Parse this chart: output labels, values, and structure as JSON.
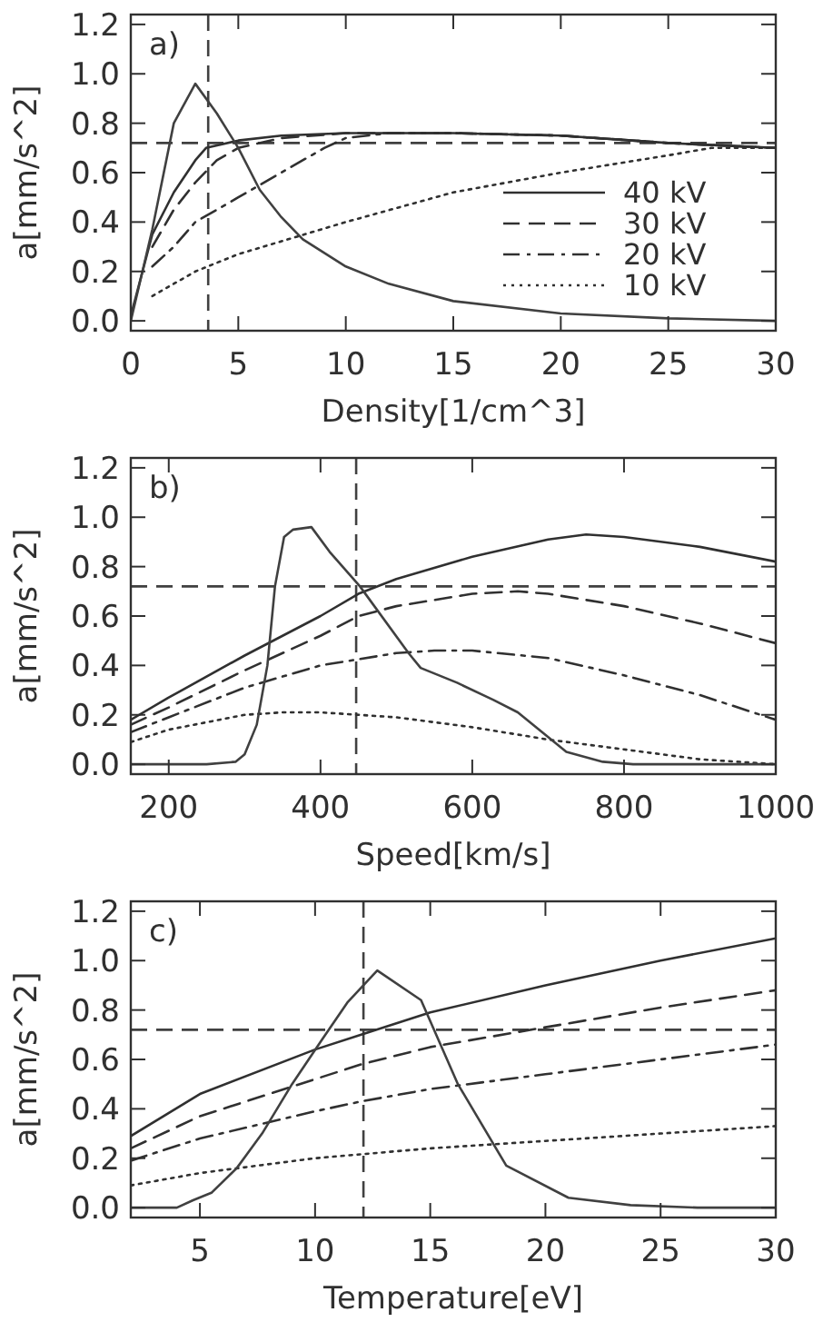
{
  "chart_data": [
    {
      "type": "line",
      "xlabel": "Density[1/cm^3]",
      "ylabel": "a[mm/s^2]",
      "annotations": [
        "a)"
      ],
      "xlim": [
        0,
        30
      ],
      "ylim": [
        -0.04,
        1.24
      ],
      "xticks": [
        0,
        5,
        10,
        15,
        20,
        25,
        30
      ],
      "yticks": [
        {
          "value": 0,
          "label": "0.0"
        },
        {
          "value": 0.2,
          "label": "0.2"
        },
        {
          "value": 0.4,
          "label": "0.4"
        },
        {
          "value": 0.6,
          "label": "0.6"
        },
        {
          "value": 0.8,
          "label": "0.8"
        },
        {
          "value": 1,
          "label": "1.0"
        },
        {
          "value": 1.2,
          "label": "1.2"
        }
      ],
      "legend": "bottom right",
      "grid": false,
      "ref_lines": [
        {
          "axis": "y",
          "value": 0.72,
          "line_style": "dashed",
          "color": "#404040"
        },
        {
          "axis": "x",
          "value": 3.6,
          "line_style": "dashed",
          "color": "#404040"
        }
      ],
      "series": [
        {
          "name": "40 kV",
          "color": "#303030",
          "line_style": "solid",
          "x": [
            0,
            1,
            2,
            3,
            3.5,
            5,
            7,
            10,
            15,
            20,
            25,
            30
          ],
          "values": [
            0.02,
            0.35,
            0.52,
            0.65,
            0.7,
            0.73,
            0.75,
            0.76,
            0.76,
            0.75,
            0.72,
            0.7
          ]
        },
        {
          "name": "30 kV",
          "color": "#303030",
          "line_style": "dashed",
          "x": [
            1,
            2,
            3,
            4,
            5,
            7,
            10,
            15,
            20,
            25,
            30
          ],
          "values": [
            0.3,
            0.45,
            0.56,
            0.65,
            0.7,
            0.74,
            0.76,
            0.76,
            0.75,
            0.72,
            0.7
          ]
        },
        {
          "name": "20 kV",
          "color": "#303030",
          "line_style": "dashdot",
          "x": [
            1,
            2,
            3,
            5,
            7,
            9,
            10,
            12,
            15,
            20,
            25,
            30
          ],
          "values": [
            0.22,
            0.3,
            0.4,
            0.5,
            0.6,
            0.7,
            0.74,
            0.76,
            0.76,
            0.75,
            0.72,
            0.7
          ]
        },
        {
          "name": "10 kV",
          "color": "#303030",
          "line_style": "dotted",
          "x": [
            1,
            3,
            5,
            10,
            15,
            20,
            25,
            27,
            30
          ],
          "values": [
            0.1,
            0.2,
            0.27,
            0.4,
            0.52,
            0.6,
            0.67,
            0.7,
            0.7
          ]
        },
        {
          "color": "#404040",
          "line_style": "solid",
          "x": [
            0,
            1,
            2,
            3,
            4,
            5,
            6,
            7,
            8,
            10,
            12,
            15,
            20,
            25,
            30
          ],
          "values": [
            0,
            0.37,
            0.8,
            0.96,
            0.84,
            0.7,
            0.53,
            0.42,
            0.33,
            0.22,
            0.15,
            0.08,
            0.03,
            0.01,
            0
          ]
        }
      ]
    },
    {
      "type": "line",
      "xlabel": "Speed[km/s]",
      "ylabel": "a[mm/s^2]",
      "annotations": [
        "b)"
      ],
      "xlim": [
        150,
        1000
      ],
      "ylim": [
        -0.04,
        1.24
      ],
      "xticks": [
        200,
        400,
        600,
        800,
        1000
      ],
      "yticks": [
        {
          "value": 0,
          "label": "0.0"
        },
        {
          "value": 0.2,
          "label": "0.2"
        },
        {
          "value": 0.4,
          "label": "0.4"
        },
        {
          "value": 0.6,
          "label": "0.6"
        },
        {
          "value": 0.8,
          "label": "0.8"
        },
        {
          "value": 1,
          "label": "1.0"
        },
        {
          "value": 1.2,
          "label": "1.2"
        }
      ],
      "grid": false,
      "ref_lines": [
        {
          "axis": "y",
          "value": 0.72,
          "line_style": "dashed",
          "color": "#404040"
        },
        {
          "axis": "x",
          "value": 447,
          "line_style": "dashed",
          "color": "#404040"
        }
      ],
      "series": [
        {
          "color": "#303030",
          "line_style": "solid",
          "x": [
            150,
            200,
            300,
            400,
            450,
            500,
            600,
            700,
            750,
            800,
            900,
            1000
          ],
          "values": [
            0.18,
            0.27,
            0.44,
            0.6,
            0.69,
            0.75,
            0.84,
            0.91,
            0.93,
            0.92,
            0.88,
            0.82
          ]
        },
        {
          "color": "#303030",
          "line_style": "dashed",
          "x": [
            150,
            200,
            300,
            400,
            450,
            500,
            600,
            660,
            700,
            800,
            900,
            1000
          ],
          "values": [
            0.16,
            0.23,
            0.38,
            0.52,
            0.6,
            0.64,
            0.69,
            0.7,
            0.69,
            0.64,
            0.57,
            0.49
          ]
        },
        {
          "color": "#303030",
          "line_style": "dashdot",
          "x": [
            150,
            200,
            300,
            400,
            500,
            550,
            600,
            700,
            800,
            900,
            1000
          ],
          "values": [
            0.13,
            0.19,
            0.31,
            0.4,
            0.45,
            0.46,
            0.46,
            0.43,
            0.36,
            0.28,
            0.18
          ]
        },
        {
          "color": "#303030",
          "line_style": "dotted",
          "x": [
            150,
            200,
            300,
            350,
            400,
            500,
            600,
            700,
            800,
            900,
            1000
          ],
          "values": [
            0.09,
            0.14,
            0.2,
            0.21,
            0.21,
            0.19,
            0.15,
            0.1,
            0.06,
            0.02,
            0
          ]
        },
        {
          "color": "#404040",
          "line_style": "solid",
          "x": [
            150,
            250,
            288,
            300,
            316,
            330,
            340,
            352,
            364,
            388,
            412,
            452,
            516,
            532,
            580,
            628,
            660,
            692,
            724,
            772,
            812,
            1000
          ],
          "values": [
            0,
            0,
            0.01,
            0.04,
            0.16,
            0.4,
            0.72,
            0.92,
            0.95,
            0.96,
            0.86,
            0.72,
            0.45,
            0.39,
            0.33,
            0.26,
            0.21,
            0.13,
            0.05,
            0.01,
            0,
            0
          ]
        }
      ]
    },
    {
      "type": "line",
      "xlabel": "Temperature[eV]",
      "ylabel": "a[mm/s^2]",
      "annotations": [
        "c)"
      ],
      "xlim": [
        2,
        30
      ],
      "ylim": [
        -0.04,
        1.24
      ],
      "xticks": [
        5,
        10,
        15,
        20,
        25,
        30
      ],
      "yticks": [
        {
          "value": 0,
          "label": "0.0"
        },
        {
          "value": 0.2,
          "label": "0.2"
        },
        {
          "value": 0.4,
          "label": "0.4"
        },
        {
          "value": 0.6,
          "label": "0.6"
        },
        {
          "value": 0.8,
          "label": "0.8"
        },
        {
          "value": 1,
          "label": "1.0"
        },
        {
          "value": 1.2,
          "label": "1.2"
        }
      ],
      "grid": false,
      "ref_lines": [
        {
          "axis": "y",
          "value": 0.72,
          "line_style": "dashed",
          "color": "#404040"
        },
        {
          "axis": "x",
          "value": 12.1,
          "line_style": "dashed",
          "color": "#404040"
        }
      ],
      "series": [
        {
          "color": "#303030",
          "line_style": "solid",
          "x": [
            2,
            5,
            10,
            12,
            15,
            20,
            25,
            30
          ],
          "values": [
            0.29,
            0.46,
            0.64,
            0.7,
            0.79,
            0.9,
            1.0,
            1.09
          ]
        },
        {
          "color": "#303030",
          "line_style": "dashed",
          "x": [
            2,
            5,
            10,
            12,
            15,
            20,
            25,
            30
          ],
          "values": [
            0.24,
            0.37,
            0.52,
            0.58,
            0.65,
            0.73,
            0.81,
            0.88
          ]
        },
        {
          "color": "#303030",
          "line_style": "dashdot",
          "x": [
            2,
            5,
            10,
            12,
            15,
            20,
            25,
            30
          ],
          "values": [
            0.19,
            0.28,
            0.39,
            0.43,
            0.48,
            0.54,
            0.6,
            0.66
          ]
        },
        {
          "color": "#303030",
          "line_style": "dotted",
          "x": [
            2,
            5,
            10,
            15,
            20,
            25,
            30
          ],
          "values": [
            0.09,
            0.14,
            0.2,
            0.24,
            0.27,
            0.3,
            0.33
          ]
        },
        {
          "color": "#404040",
          "line_style": "solid",
          "x": [
            2,
            4,
            4.7,
            5.5,
            6.6,
            7.7,
            9,
            10.3,
            11.4,
            12.7,
            14.6,
            16.2,
            18.3,
            21,
            23.7,
            26.6,
            30
          ],
          "values": [
            0,
            0,
            0.03,
            0.06,
            0.16,
            0.3,
            0.5,
            0.68,
            0.83,
            0.96,
            0.84,
            0.5,
            0.17,
            0.04,
            0.01,
            0,
            0
          ]
        }
      ]
    }
  ]
}
